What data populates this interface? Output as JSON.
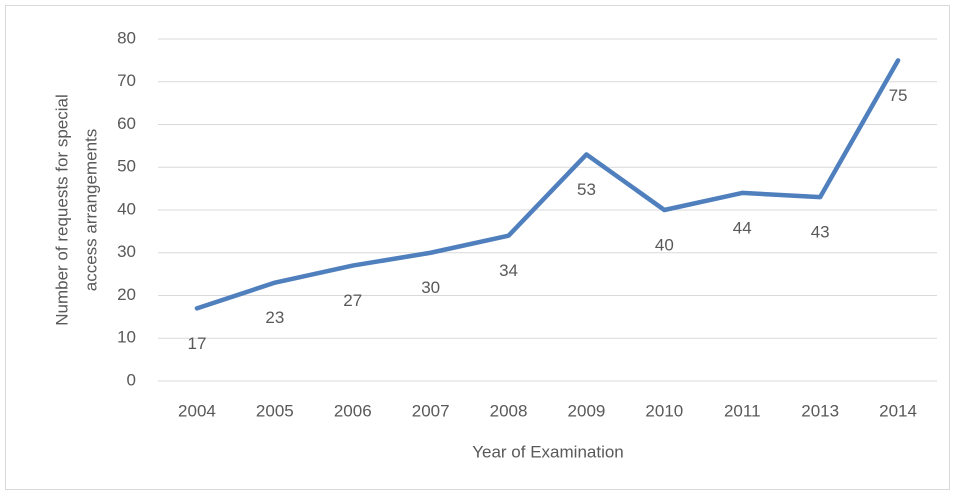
{
  "chart_data": {
    "type": "line",
    "categories": [
      "2004",
      "2005",
      "2006",
      "2007",
      "2008",
      "2009",
      "2010",
      "2011",
      "2013",
      "2014"
    ],
    "series": [
      {
        "color": "#4f7fbd",
        "values": [
          17,
          23,
          27,
          30,
          34,
          53,
          40,
          44,
          43,
          75
        ]
      }
    ],
    "xlabel": "Year of Examination",
    "ylabel": [
      "Number of requests for special",
      "access arrangements"
    ],
    "ylim": [
      0,
      80
    ],
    "yticks": [
      0,
      10,
      20,
      30,
      40,
      50,
      60,
      70,
      80
    ],
    "grid": true,
    "data_labels": true
  }
}
